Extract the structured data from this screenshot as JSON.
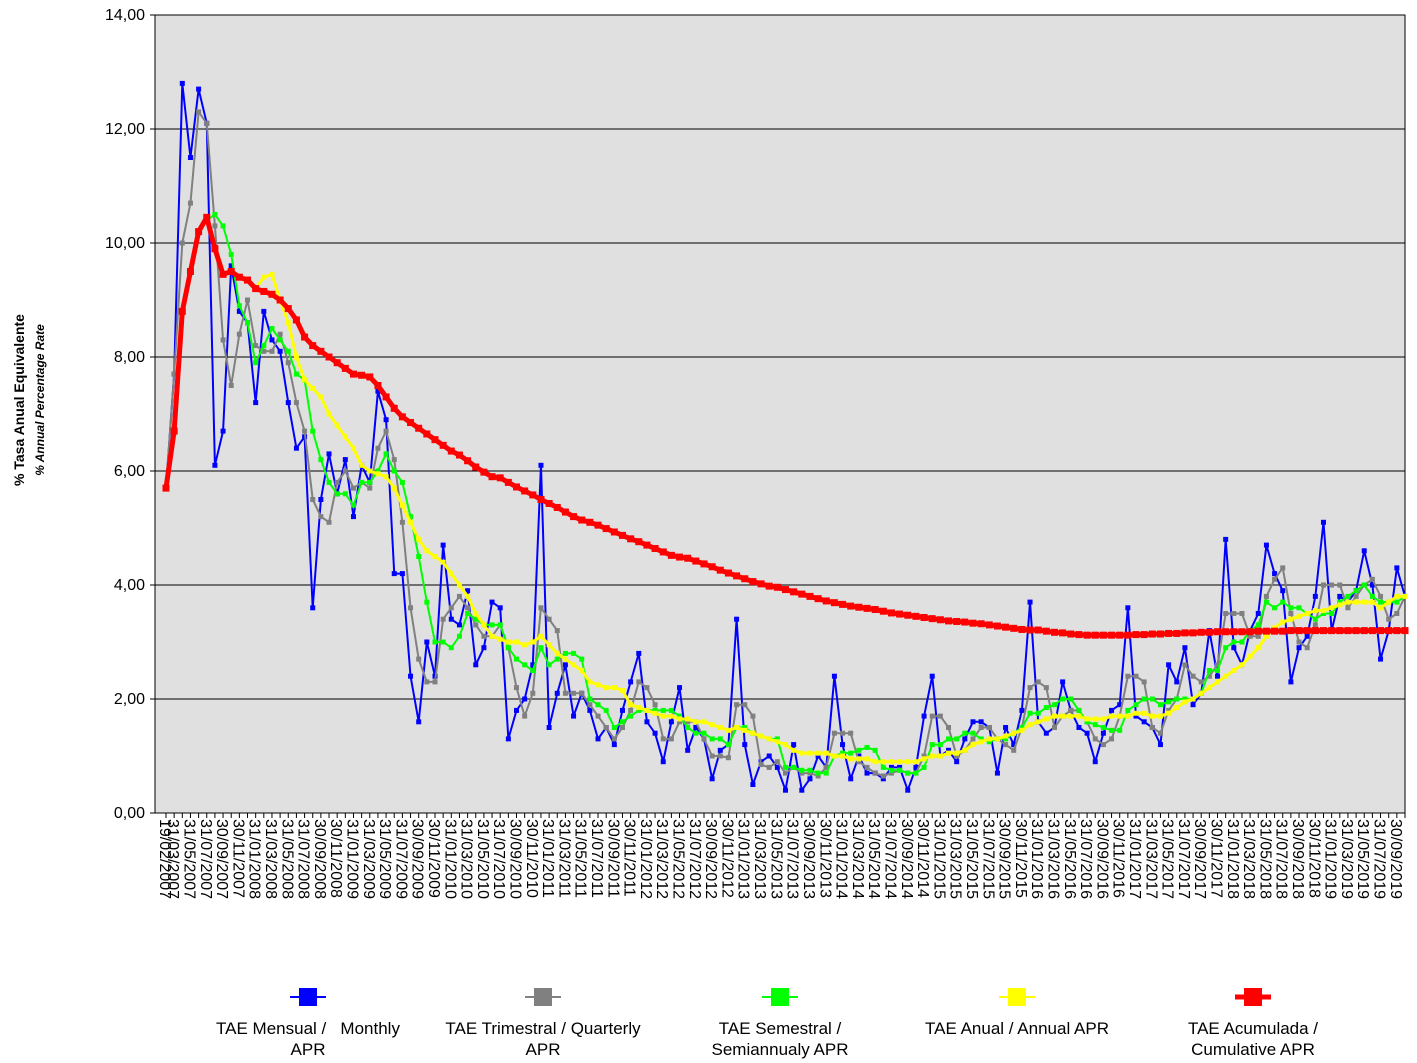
{
  "chart_data": {
    "type": "line",
    "y_label": "% Tasa Anual Equivalente",
    "y_label_en": "% Annual Percentage Rate",
    "categories": [
      "19/02/2007",
      "31/03/2007",
      null,
      "31/05/2007",
      null,
      "31/07/2007",
      null,
      "30/09/2007",
      null,
      "30/11/2007",
      null,
      "31/01/2008",
      null,
      "31/03/2008",
      null,
      "31/05/2008",
      null,
      "31/07/2008",
      null,
      "30/09/2008",
      null,
      "30/11/2008",
      null,
      "31/01/2009",
      null,
      "31/03/2009",
      null,
      "31/05/2009",
      null,
      "31/07/2009",
      null,
      "30/09/2009",
      null,
      "30/11/2009",
      null,
      "31/01/2010",
      null,
      "31/03/2010",
      null,
      "31/05/2010",
      null,
      "31/07/2010",
      null,
      "30/09/2010",
      null,
      "30/11/2010",
      null,
      "31/01/2011",
      null,
      "31/03/2011",
      null,
      "31/05/2011",
      null,
      "31/07/2011",
      null,
      "30/09/2011",
      null,
      "30/11/2011",
      null,
      "31/01/2012",
      null,
      "31/03/2012",
      null,
      "31/05/2012",
      null,
      "31/07/2012",
      null,
      "30/09/2012",
      null,
      "30/11/2012",
      null,
      "31/01/2013",
      null,
      "31/03/2013",
      null,
      "31/05/2013",
      null,
      "31/07/2013",
      null,
      "30/09/2013",
      null,
      "30/11/2013",
      null,
      "31/01/2014",
      null,
      "31/03/2014",
      null,
      "31/05/2014",
      null,
      "31/07/2014",
      null,
      "30/09/2014",
      null,
      "30/11/2014",
      null,
      "31/01/2015",
      null,
      "31/03/2015",
      null,
      "31/05/2015",
      null,
      "31/07/2015",
      null,
      "30/09/2015",
      null,
      "30/11/2015",
      null,
      "31/01/2016",
      null,
      "31/03/2016",
      null,
      "31/05/2016",
      null,
      "31/07/2016",
      null,
      "30/09/2016",
      null,
      "30/11/2016",
      null,
      "31/01/2017",
      null,
      "31/03/2017",
      null,
      "31/05/2017",
      null,
      "31/07/2017",
      null,
      "30/09/2017",
      null,
      "30/11/2017",
      null,
      "31/01/2018",
      null,
      "31/03/2018",
      null,
      "31/05/2018",
      null,
      "31/07/2018",
      null,
      "30/09/2018",
      null,
      "30/11/2018",
      null,
      "31/01/2019",
      null,
      "31/03/2019",
      null,
      "31/05/2019",
      null,
      "31/07/2019",
      null,
      "30/09/2019",
      null
    ],
    "series": [
      {
        "name": "TAE Mensual /   Monthly APR",
        "color": "#0000ff",
        "width": 2,
        "marker": 5,
        "values": [
          5.7,
          7.7,
          12.8,
          11.5,
          12.7,
          12.1,
          6.1,
          6.7,
          9.6,
          8.8,
          8.6,
          7.2,
          8.8,
          8.3,
          8.1,
          7.2,
          6.4,
          6.6,
          3.6,
          5.5,
          6.3,
          5.6,
          6.2,
          5.2,
          6.1,
          5.8,
          7.4,
          6.9,
          4.2,
          4.2,
          2.4,
          1.6,
          3.0,
          2.4,
          4.7,
          3.4,
          3.3,
          3.9,
          2.6,
          2.9,
          3.7,
          3.6,
          1.3,
          1.8,
          2.0,
          2.6,
          6.1,
          1.5,
          2.1,
          2.6,
          1.7,
          2.1,
          1.8,
          1.3,
          1.5,
          1.2,
          1.8,
          2.3,
          2.8,
          1.6,
          1.4,
          0.9,
          1.6,
          2.2,
          1.1,
          1.5,
          1.3,
          0.6,
          1.1,
          1.2,
          3.4,
          1.2,
          0.5,
          0.9,
          1.0,
          0.8,
          0.4,
          1.2,
          0.4,
          0.6,
          1.0,
          0.8,
          2.4,
          1.2,
          0.6,
          1.0,
          0.7,
          0.7,
          0.6,
          0.8,
          0.8,
          0.4,
          0.8,
          1.7,
          2.4,
          1.0,
          1.1,
          0.9,
          1.3,
          1.6,
          1.6,
          1.5,
          0.7,
          1.5,
          1.2,
          1.8,
          3.7,
          1.6,
          1.4,
          1.5,
          2.3,
          1.8,
          1.5,
          1.4,
          0.9,
          1.4,
          1.8,
          1.9,
          3.6,
          1.7,
          1.6,
          1.5,
          1.2,
          2.6,
          2.3,
          2.9,
          1.9,
          2.1,
          3.2,
          2.4,
          4.8,
          2.9,
          2.6,
          3.2,
          3.5,
          4.7,
          4.2,
          3.9,
          2.3,
          2.9,
          3.1,
          3.8,
          5.1,
          3.2,
          3.8,
          3.7,
          3.9,
          4.6,
          4.0,
          2.7,
          3.2,
          4.3,
          3.8
        ]
      },
      {
        "name": "TAE Trimestral / Quarterly APR",
        "color": "#808080",
        "width": 2,
        "marker": 5,
        "values": [
          5.7,
          7.7,
          10.0,
          10.7,
          12.3,
          12.1,
          10.3,
          8.3,
          7.5,
          8.4,
          9.0,
          8.2,
          8.1,
          8.1,
          8.4,
          7.9,
          7.2,
          6.7,
          5.5,
          5.2,
          5.1,
          5.8,
          6.0,
          5.7,
          5.8,
          5.7,
          6.4,
          6.7,
          6.2,
          5.1,
          3.6,
          2.7,
          2.3,
          2.3,
          3.4,
          3.6,
          3.8,
          3.6,
          3.3,
          3.1,
          3.1,
          3.3,
          2.9,
          2.2,
          1.7,
          2.1,
          3.6,
          3.4,
          3.2,
          2.1,
          2.1,
          2.1,
          1.9,
          1.7,
          1.5,
          1.3,
          1.5,
          1.8,
          2.3,
          2.2,
          1.9,
          1.3,
          1.3,
          1.6,
          1.6,
          1.6,
          1.3,
          1.0,
          1.0,
          0.97,
          1.9,
          1.9,
          1.7,
          0.85,
          0.8,
          0.9,
          0.7,
          0.8,
          0.7,
          0.7,
          0.65,
          0.8,
          1.4,
          1.4,
          1.4,
          0.9,
          0.8,
          0.7,
          0.65,
          0.7,
          0.75,
          0.7,
          0.7,
          1.0,
          1.7,
          1.7,
          1.5,
          1.0,
          1.1,
          1.3,
          1.5,
          1.5,
          1.3,
          1.2,
          1.1,
          1.5,
          2.2,
          2.3,
          2.2,
          1.5,
          1.7,
          1.8,
          1.8,
          1.6,
          1.3,
          1.2,
          1.3,
          1.7,
          2.4,
          2.4,
          2.3,
          1.5,
          1.4,
          1.8,
          2.0,
          2.6,
          2.4,
          2.3,
          2.4,
          2.6,
          3.5,
          3.5,
          3.5,
          3.1,
          3.1,
          3.8,
          4.1,
          4.3,
          3.5,
          3.0,
          2.9,
          3.3,
          4.0,
          4.0,
          4.0,
          3.6,
          3.8,
          4.0,
          4.1,
          3.8,
          3.4,
          3.5,
          3.8
        ]
      },
      {
        "name": "TAE Semestral / Semiannualy APR",
        "color": "#00ff00",
        "width": 2,
        "marker": 5,
        "values": [
          5.7,
          6.7,
          8.8,
          9.5,
          10.2,
          10.4,
          10.5,
          10.3,
          9.8,
          8.9,
          8.6,
          7.9,
          8.2,
          8.5,
          8.3,
          8.1,
          7.7,
          7.6,
          6.7,
          6.2,
          5.8,
          5.6,
          5.6,
          5.4,
          5.8,
          5.8,
          6.0,
          6.3,
          6.0,
          5.8,
          5.2,
          4.5,
          3.7,
          3.0,
          3.0,
          2.9,
          3.1,
          3.5,
          3.4,
          3.3,
          3.3,
          3.3,
          2.9,
          2.7,
          2.6,
          2.5,
          2.9,
          2.6,
          2.7,
          2.8,
          2.8,
          2.7,
          2.0,
          1.9,
          1.8,
          1.5,
          1.6,
          1.7,
          1.8,
          1.8,
          1.8,
          1.8,
          1.8,
          1.7,
          1.5,
          1.4,
          1.4,
          1.3,
          1.3,
          1.2,
          1.5,
          1.5,
          1.4,
          1.35,
          1.3,
          1.3,
          0.8,
          0.8,
          0.75,
          0.75,
          0.7,
          0.7,
          1.0,
          1.05,
          1.05,
          1.1,
          1.15,
          1.1,
          0.8,
          0.75,
          0.75,
          0.7,
          0.7,
          0.8,
          1.2,
          1.2,
          1.3,
          1.3,
          1.4,
          1.4,
          1.3,
          1.25,
          1.3,
          1.3,
          1.4,
          1.5,
          1.75,
          1.75,
          1.85,
          1.9,
          2.0,
          2.0,
          1.8,
          1.6,
          1.55,
          1.5,
          1.45,
          1.45,
          1.8,
          1.9,
          2.0,
          2.0,
          1.9,
          1.95,
          2.0,
          2.0,
          2.0,
          2.1,
          2.5,
          2.5,
          2.9,
          3.0,
          3.0,
          3.2,
          3.3,
          3.7,
          3.6,
          3.7,
          3.6,
          3.6,
          3.5,
          3.4,
          3.5,
          3.5,
          3.7,
          3.8,
          3.9,
          4.0,
          3.8,
          3.7,
          3.7,
          3.7,
          3.8
        ]
      },
      {
        "name": "TAE Anual / Annual APR",
        "color": "#ffff00",
        "width": 3,
        "marker": 5,
        "values": [
          5.7,
          6.7,
          8.8,
          9.5,
          10.2,
          10.45,
          9.9,
          9.45,
          9.5,
          9.4,
          9.35,
          9.2,
          9.4,
          9.45,
          9.0,
          8.6,
          8.0,
          7.6,
          7.45,
          7.3,
          7.0,
          6.8,
          6.6,
          6.4,
          6.1,
          6.0,
          5.95,
          5.9,
          5.7,
          5.4,
          5.1,
          4.8,
          4.6,
          4.5,
          4.4,
          4.2,
          4.0,
          3.8,
          3.5,
          3.3,
          3.1,
          3.05,
          3.0,
          3.0,
          2.95,
          3.0,
          3.1,
          2.95,
          2.8,
          2.7,
          2.6,
          2.5,
          2.3,
          2.25,
          2.2,
          2.2,
          2.15,
          1.9,
          1.85,
          1.8,
          1.75,
          1.7,
          1.7,
          1.65,
          1.65,
          1.6,
          1.6,
          1.55,
          1.5,
          1.45,
          1.5,
          1.45,
          1.4,
          1.35,
          1.3,
          1.25,
          1.2,
          1.1,
          1.05,
          1.05,
          1.05,
          1.05,
          1.0,
          1.0,
          0.95,
          0.95,
          0.95,
          0.9,
          0.9,
          0.9,
          0.9,
          0.9,
          0.9,
          0.95,
          1.0,
          1.0,
          1.05,
          1.05,
          1.1,
          1.2,
          1.25,
          1.3,
          1.3,
          1.35,
          1.4,
          1.45,
          1.55,
          1.6,
          1.65,
          1.7,
          1.7,
          1.7,
          1.7,
          1.65,
          1.65,
          1.65,
          1.7,
          1.7,
          1.7,
          1.75,
          1.75,
          1.7,
          1.7,
          1.75,
          1.85,
          1.95,
          2.0,
          2.1,
          2.2,
          2.3,
          2.4,
          2.5,
          2.6,
          2.75,
          2.9,
          3.1,
          3.25,
          3.35,
          3.4,
          3.45,
          3.5,
          3.55,
          3.55,
          3.6,
          3.65,
          3.7,
          3.7,
          3.7,
          3.7,
          3.6,
          3.7,
          3.8,
          3.8
        ]
      },
      {
        "name": "TAE Acumulada / Cumulative APR",
        "color": "#ff0000",
        "width": 5,
        "marker": 7,
        "values": [
          5.7,
          6.7,
          8.8,
          9.5,
          10.2,
          10.45,
          9.9,
          9.45,
          9.5,
          9.4,
          9.35,
          9.2,
          9.15,
          9.1,
          9.0,
          8.85,
          8.65,
          8.35,
          8.2,
          8.1,
          8.0,
          7.9,
          7.8,
          7.7,
          7.68,
          7.65,
          7.5,
          7.3,
          7.1,
          6.95,
          6.85,
          6.75,
          6.65,
          6.55,
          6.45,
          6.35,
          6.28,
          6.18,
          6.07,
          5.98,
          5.9,
          5.88,
          5.8,
          5.72,
          5.65,
          5.58,
          5.5,
          5.43,
          5.36,
          5.28,
          5.2,
          5.14,
          5.1,
          5.05,
          4.99,
          4.93,
          4.87,
          4.81,
          4.76,
          4.7,
          4.64,
          4.58,
          4.52,
          4.49,
          4.47,
          4.42,
          4.37,
          4.32,
          4.26,
          4.21,
          4.16,
          4.11,
          4.06,
          4.02,
          3.98,
          3.96,
          3.92,
          3.88,
          3.84,
          3.8,
          3.76,
          3.72,
          3.69,
          3.66,
          3.63,
          3.61,
          3.59,
          3.57,
          3.54,
          3.51,
          3.49,
          3.47,
          3.45,
          3.43,
          3.41,
          3.39,
          3.37,
          3.36,
          3.35,
          3.33,
          3.32,
          3.3,
          3.28,
          3.26,
          3.24,
          3.22,
          3.21,
          3.21,
          3.19,
          3.17,
          3.16,
          3.14,
          3.13,
          3.12,
          3.12,
          3.12,
          3.12,
          3.12,
          3.12,
          3.13,
          3.13,
          3.14,
          3.14,
          3.15,
          3.15,
          3.16,
          3.16,
          3.17,
          3.17,
          3.18,
          3.18,
          3.18,
          3.18,
          3.18,
          3.19,
          3.19,
          3.19,
          3.19,
          3.2,
          3.2,
          3.2,
          3.2,
          3.2,
          3.2,
          3.2,
          3.2,
          3.2,
          3.2,
          3.2,
          3.2,
          3.2,
          3.2,
          3.2
        ]
      }
    ],
    "ylim": [
      0,
      14
    ],
    "yticks": [
      {
        "value": 0,
        "label": "0,00"
      },
      {
        "value": 2,
        "label": "2,00"
      },
      {
        "value": 4,
        "label": "4,00"
      },
      {
        "value": 6,
        "label": "6,00"
      },
      {
        "value": 8,
        "label": "8,00"
      },
      {
        "value": 10,
        "label": "10,00"
      },
      {
        "value": 12,
        "label": "12,00"
      },
      {
        "value": 14,
        "label": "14,00"
      }
    ],
    "grid": true,
    "plot_background": "#e0e0e0"
  }
}
